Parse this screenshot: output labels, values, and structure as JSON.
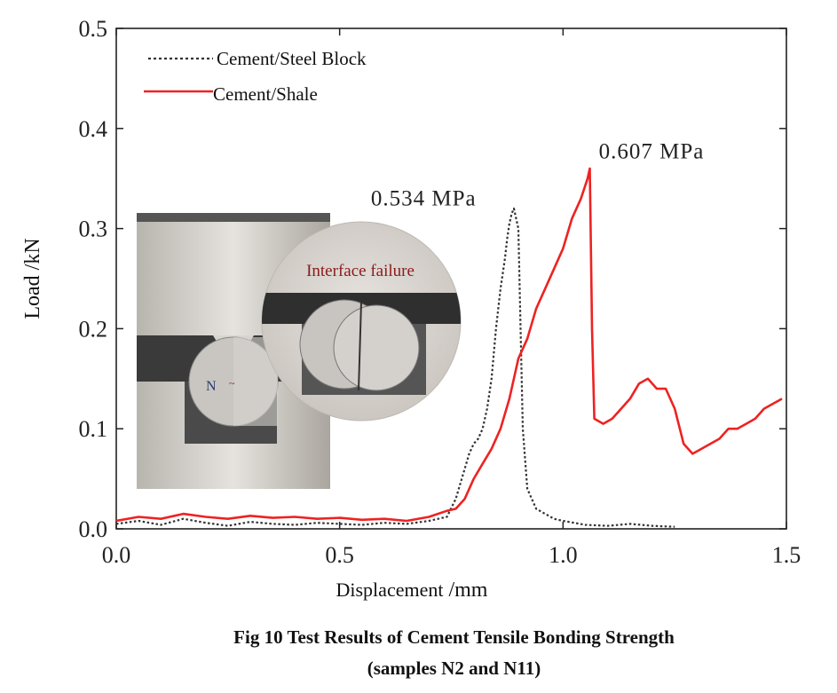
{
  "chart_data": {
    "type": "line",
    "title": "",
    "xlabel_main": "Displacement",
    "xlabel_unit": " /mm",
    "ylabel": "Load /kN",
    "xlim": [
      0,
      1.5
    ],
    "ylim": [
      0,
      0.5
    ],
    "x_ticks": [
      "0.0",
      "0.5",
      "1.0",
      "1.5"
    ],
    "x_tick_values": [
      0,
      0.5,
      1.0,
      1.5
    ],
    "y_ticks": [
      "0.0",
      "0.1",
      "0.2",
      "0.3",
      "0.4",
      "0.5"
    ],
    "y_tick_values": [
      0,
      0.1,
      0.2,
      0.3,
      0.4,
      0.5
    ],
    "grid": false,
    "legend_position": "top-left",
    "series": [
      {
        "name": "Cement/Steel Block",
        "color": "#333333",
        "style": "dotted",
        "x": [
          0.0,
          0.05,
          0.1,
          0.15,
          0.2,
          0.25,
          0.3,
          0.35,
          0.4,
          0.45,
          0.5,
          0.55,
          0.6,
          0.65,
          0.7,
          0.74,
          0.76,
          0.78,
          0.79,
          0.8,
          0.81,
          0.82,
          0.83,
          0.84,
          0.85,
          0.86,
          0.87,
          0.875,
          0.88,
          0.885,
          0.89,
          0.9,
          0.905,
          0.91,
          0.92,
          0.94,
          0.96,
          0.98,
          1.0,
          1.05,
          1.1,
          1.15,
          1.2,
          1.25
        ],
        "y": [
          0.005,
          0.008,
          0.004,
          0.01,
          0.006,
          0.003,
          0.007,
          0.005,
          0.004,
          0.006,
          0.005,
          0.004,
          0.006,
          0.005,
          0.008,
          0.012,
          0.03,
          0.06,
          0.075,
          0.085,
          0.09,
          0.1,
          0.12,
          0.15,
          0.2,
          0.24,
          0.27,
          0.29,
          0.305,
          0.315,
          0.32,
          0.3,
          0.2,
          0.1,
          0.04,
          0.02,
          0.015,
          0.01,
          0.008,
          0.004,
          0.003,
          0.005,
          0.003,
          0.002
        ]
      },
      {
        "name": "Cement/Shale",
        "color": "#ee2222",
        "style": "solid",
        "x": [
          0.0,
          0.05,
          0.1,
          0.15,
          0.2,
          0.25,
          0.3,
          0.35,
          0.4,
          0.45,
          0.5,
          0.55,
          0.6,
          0.65,
          0.7,
          0.74,
          0.76,
          0.78,
          0.8,
          0.82,
          0.84,
          0.86,
          0.88,
          0.9,
          0.92,
          0.94,
          0.96,
          0.98,
          1.0,
          1.02,
          1.04,
          1.055,
          1.06,
          1.065,
          1.07,
          1.09,
          1.11,
          1.13,
          1.15,
          1.17,
          1.19,
          1.21,
          1.23,
          1.25,
          1.27,
          1.29,
          1.31,
          1.33,
          1.35,
          1.37,
          1.39,
          1.41,
          1.43,
          1.45,
          1.47,
          1.49
        ],
        "y": [
          0.008,
          0.012,
          0.01,
          0.015,
          0.012,
          0.01,
          0.013,
          0.011,
          0.012,
          0.01,
          0.011,
          0.009,
          0.01,
          0.008,
          0.012,
          0.018,
          0.02,
          0.03,
          0.05,
          0.065,
          0.08,
          0.1,
          0.13,
          0.17,
          0.19,
          0.22,
          0.24,
          0.26,
          0.28,
          0.31,
          0.33,
          0.35,
          0.36,
          0.2,
          0.11,
          0.105,
          0.11,
          0.12,
          0.13,
          0.145,
          0.15,
          0.14,
          0.14,
          0.12,
          0.085,
          0.075,
          0.08,
          0.085,
          0.09,
          0.1,
          0.1,
          0.105,
          0.11,
          0.12,
          0.125,
          0.13
        ]
      }
    ],
    "annotations": [
      {
        "text": "0.534 MPa",
        "x": 0.57,
        "y": 0.323
      },
      {
        "text": "0.607 MPa",
        "x": 1.08,
        "y": 0.37
      }
    ]
  },
  "inset": {
    "label": "Interface failure",
    "sample_mark": "N"
  },
  "caption": {
    "line1": "Fig 10 Test Results of Cement Tensile Bonding Strength",
    "line2": "(samples N2 and N11)"
  }
}
